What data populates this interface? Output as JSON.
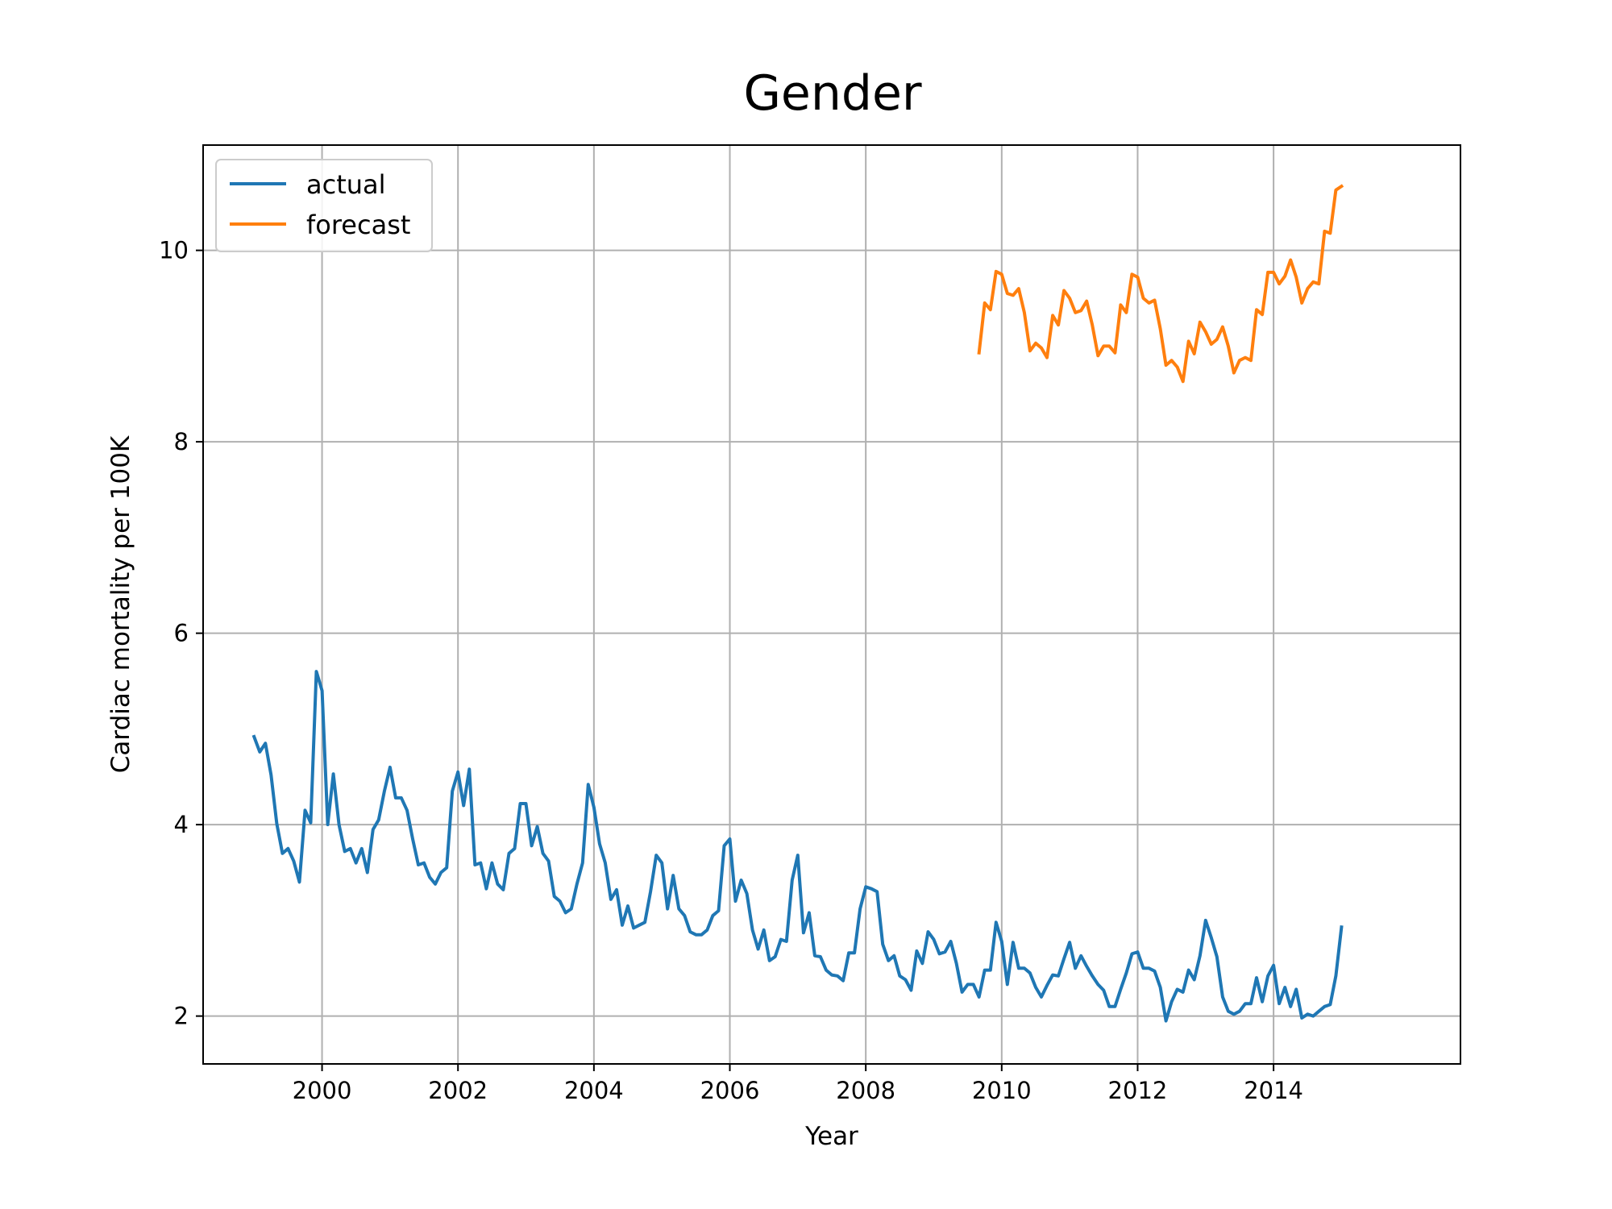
{
  "chart_data": {
    "type": "line",
    "title": "Gender",
    "xlabel": "Year",
    "ylabel": "Cardiac mortality per 100K",
    "xlim": [
      1998.25,
      2016.75
    ],
    "ylim": [
      1.5,
      11.1
    ],
    "xticks": [
      2000,
      2002,
      2004,
      2006,
      2008,
      2010,
      2012,
      2014
    ],
    "yticks": [
      2,
      4,
      6,
      8,
      10
    ],
    "grid": true,
    "legend_position": "top-left",
    "series": [
      {
        "name": "actual",
        "color": "#1f77b4",
        "x_start": 1999.0,
        "x_step": 0.0833333,
        "values": [
          4.92,
          4.76,
          4.85,
          4.52,
          4.01,
          3.7,
          3.75,
          3.62,
          3.4,
          4.15,
          4.02,
          5.6,
          5.4,
          4.0,
          4.53,
          4.0,
          3.72,
          3.75,
          3.6,
          3.75,
          3.5,
          3.95,
          4.05,
          4.35,
          4.6,
          4.28,
          4.28,
          4.15,
          3.85,
          3.58,
          3.6,
          3.45,
          3.38,
          3.5,
          3.55,
          4.35,
          4.55,
          4.2,
          4.58,
          3.58,
          3.6,
          3.33,
          3.6,
          3.38,
          3.32,
          3.7,
          3.75,
          4.22,
          4.22,
          3.78,
          3.98,
          3.7,
          3.62,
          3.25,
          3.2,
          3.08,
          3.12,
          3.38,
          3.6,
          4.42,
          4.18,
          3.8,
          3.6,
          3.22,
          3.32,
          2.95,
          3.15,
          2.92,
          2.95,
          2.98,
          3.3,
          3.68,
          3.6,
          3.12,
          3.47,
          3.12,
          3.05,
          2.88,
          2.85,
          2.85,
          2.9,
          3.05,
          3.1,
          3.78,
          3.85,
          3.2,
          3.42,
          3.28,
          2.9,
          2.7,
          2.9,
          2.58,
          2.62,
          2.8,
          2.78,
          3.42,
          3.68,
          2.87,
          3.08,
          2.63,
          2.62,
          2.48,
          2.43,
          2.42,
          2.37,
          2.66,
          2.66,
          3.12,
          3.35,
          3.33,
          3.3,
          2.75,
          2.58,
          2.63,
          2.42,
          2.38,
          2.27,
          2.68,
          2.55,
          2.88,
          2.8,
          2.65,
          2.67,
          2.78,
          2.55,
          2.25,
          2.33,
          2.33,
          2.2,
          2.48,
          2.48,
          2.98,
          2.78,
          2.33,
          2.77,
          2.5,
          2.5,
          2.45,
          2.3,
          2.2,
          2.32,
          2.43,
          2.42,
          2.6,
          2.77,
          2.5,
          2.63,
          2.52,
          2.42,
          2.33,
          2.27,
          2.1,
          2.1,
          2.28,
          2.45,
          2.65,
          2.67,
          2.5,
          2.5,
          2.47,
          2.3,
          1.95,
          2.15,
          2.28,
          2.25,
          2.48,
          2.38,
          2.63,
          3.0,
          2.82,
          2.62,
          2.2,
          2.05,
          2.02,
          2.05,
          2.13,
          2.13,
          2.4,
          2.15,
          2.42,
          2.53,
          2.13,
          2.3,
          2.1,
          2.28,
          1.98,
          2.02,
          2.0,
          2.05,
          2.1,
          2.12,
          2.42,
          2.93
        ]
      },
      {
        "name": "forecast",
        "color": "#ff7f0e",
        "x_start": 2009.6667,
        "x_step": 0.0833333,
        "values": [
          8.93,
          9.45,
          9.38,
          9.78,
          9.75,
          9.55,
          9.53,
          9.6,
          9.35,
          8.95,
          9.03,
          8.98,
          8.88,
          9.32,
          9.22,
          9.58,
          9.5,
          9.35,
          9.37,
          9.47,
          9.22,
          8.9,
          9.0,
          9.0,
          8.93,
          9.43,
          9.35,
          9.75,
          9.72,
          9.5,
          9.45,
          9.48,
          9.18,
          8.8,
          8.85,
          8.78,
          8.63,
          9.05,
          8.92,
          9.25,
          9.15,
          9.02,
          9.07,
          9.2,
          9.0,
          8.72,
          8.85,
          8.88,
          8.85,
          9.38,
          9.33,
          9.77,
          9.77,
          9.65,
          9.73,
          9.9,
          9.72,
          9.45,
          9.6,
          9.67,
          9.65,
          10.2,
          10.18,
          10.63,
          10.67
        ]
      }
    ]
  }
}
